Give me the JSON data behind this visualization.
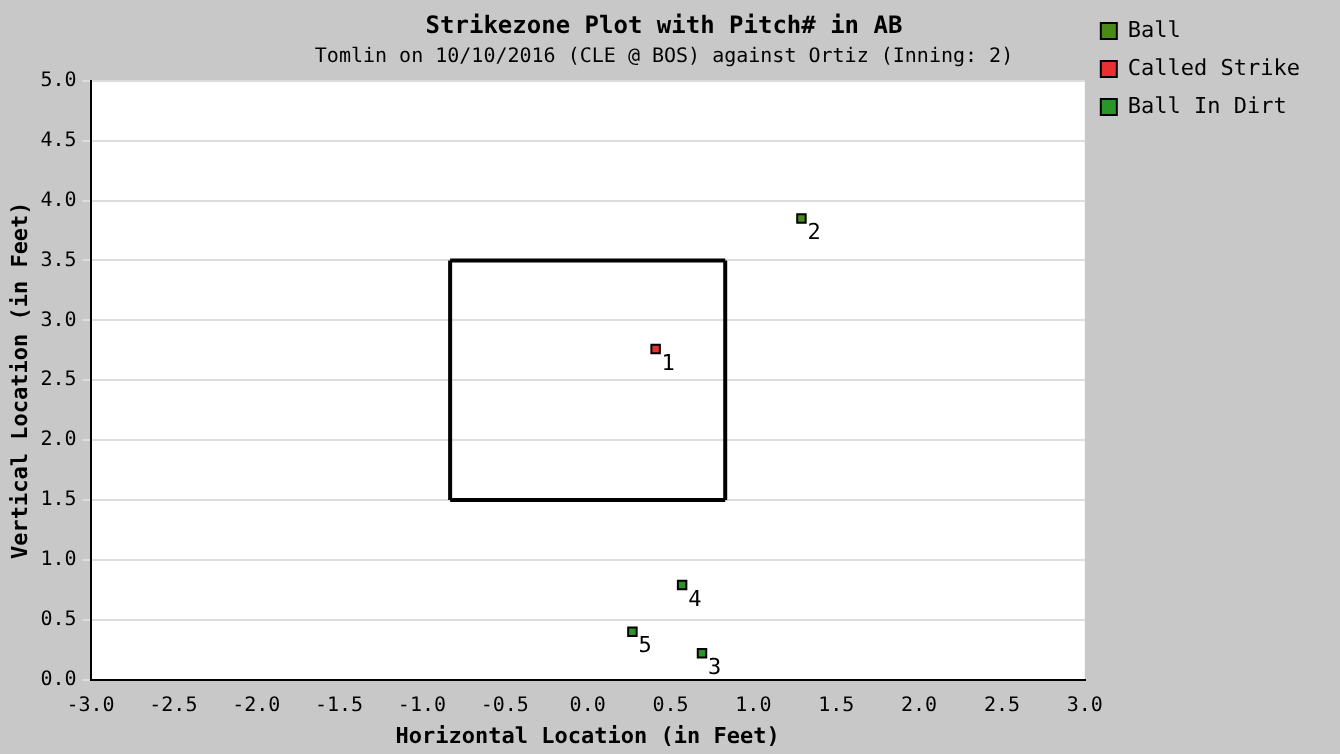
{
  "chart_data": {
    "type": "scatter",
    "title": "Strikezone Plot with Pitch# in AB",
    "subtitle": "Tomlin on 10/10/2016 (CLE @ BOS) against Ortiz (Inning: 2)",
    "xlabel": "Horizontal Location (in Feet)",
    "ylabel": "Vertical Location (in Feet)",
    "series": [
      {
        "name": "Ball",
        "color": "#4a8a1a",
        "marker": "square",
        "x": [
          1.29
        ],
        "values": [
          3.85
        ]
      },
      {
        "name": "Called Strike",
        "color": "#e83030",
        "marker": "square",
        "x": [
          0.41
        ],
        "values": [
          2.76
        ]
      },
      {
        "name": "Ball In Dirt",
        "color": "#2a962a",
        "marker": "square",
        "x": [
          0.69,
          0.57,
          0.27
        ],
        "values": [
          0.22,
          0.79,
          0.4
        ]
      },
      {
        "type": "line",
        "color": "#000000",
        "marker": "none",
        "line_style": "solid",
        "x": [
          -0.83,
          0.83
        ],
        "values": [
          1.5,
          1.5
        ]
      },
      {
        "type": "line",
        "color": "#000000",
        "marker": "none",
        "line_style": "solid",
        "x": [
          -0.83,
          0.83
        ],
        "values": [
          3.5,
          3.5
        ]
      },
      {
        "type": "line",
        "color": "#000000",
        "marker": "none",
        "line_style": "solid",
        "x": [
          -0.83,
          -0.83
        ],
        "values": [
          1.5,
          3.5
        ]
      },
      {
        "type": "line",
        "color": "#000000",
        "marker": "none",
        "line_style": "solid",
        "x": [
          0.83,
          0.83
        ],
        "values": [
          1.5,
          3.5
        ]
      }
    ],
    "annotations": [
      {
        "text": "1",
        "x": 0.41,
        "y": 2.76
      },
      {
        "text": "2",
        "x": 1.29,
        "y": 3.85
      },
      {
        "text": "3",
        "x": 0.69,
        "y": 0.22
      },
      {
        "text": "4",
        "x": 0.57,
        "y": 0.79
      },
      {
        "text": "5",
        "x": 0.27,
        "y": 0.4
      }
    ],
    "xlim": [
      -3,
      3
    ],
    "ylim": [
      0,
      5
    ],
    "xticks": [
      {
        "value": -3,
        "label": "-3.0"
      },
      {
        "value": -2.5,
        "label": "-2.5"
      },
      {
        "value": -2,
        "label": "-2.0"
      },
      {
        "value": -1.5,
        "label": "-1.5"
      },
      {
        "value": -1,
        "label": "-1.0"
      },
      {
        "value": -0.5,
        "label": "-0.5"
      },
      {
        "value": 0,
        "label": "0.0"
      },
      {
        "value": 0.5,
        "label": "0.5"
      },
      {
        "value": 1,
        "label": "1.0"
      },
      {
        "value": 1.5,
        "label": "1.5"
      },
      {
        "value": 2,
        "label": "2.0"
      },
      {
        "value": 2.5,
        "label": "2.5"
      },
      {
        "value": 3,
        "label": "3.0"
      }
    ],
    "yticks": [
      {
        "value": 0,
        "label": "0.0"
      },
      {
        "value": 0.5,
        "label": "0.5"
      },
      {
        "value": 1,
        "label": "1.0"
      },
      {
        "value": 1.5,
        "label": "1.5"
      },
      {
        "value": 2,
        "label": "2.0"
      },
      {
        "value": 2.5,
        "label": "2.5"
      },
      {
        "value": 3,
        "label": "3.0"
      },
      {
        "value": 3.5,
        "label": "3.5"
      },
      {
        "value": 4,
        "label": "4.0"
      },
      {
        "value": 4.5,
        "label": "4.5"
      },
      {
        "value": 5,
        "label": "5.0"
      }
    ],
    "grid": "y",
    "legend": "right"
  }
}
